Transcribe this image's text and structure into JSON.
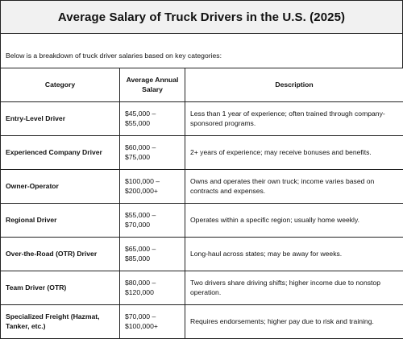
{
  "title": "Average Salary of Truck Drivers in the U.S. (2025)",
  "intro": "Below is a breakdown of truck driver salaries based on key categories:",
  "table": {
    "headers": {
      "category": "Category",
      "salary": "Average Annual Salary",
      "description": "Description"
    },
    "rows": [
      {
        "category": "Entry-Level Driver",
        "salary_line1": "$45,000 –",
        "salary_line2": "$55,000",
        "description": "Less than 1 year of experience; often trained through company-sponsored programs."
      },
      {
        "category": "Experienced Company Driver",
        "salary_line1": "$60,000 –",
        "salary_line2": "$75,000",
        "description": "2+ years of experience; may receive bonuses and benefits."
      },
      {
        "category": "Owner-Operator",
        "salary_line1": "$100,000 –",
        "salary_line2": "$200,000+",
        "description": "Owns and operates their own truck; income varies based on contracts and expenses."
      },
      {
        "category": "Regional Driver",
        "salary_line1": "$55,000 –",
        "salary_line2": "$70,000",
        "description": "Operates within a specific region; usually home weekly."
      },
      {
        "category": "Over-the-Road (OTR) Driver",
        "salary_line1": "$65,000 –",
        "salary_line2": "$85,000",
        "description": "Long-haul across states; may be away for weeks."
      },
      {
        "category": "Team Driver (OTR)",
        "salary_line1": "$80,000 –",
        "salary_line2": "$120,000",
        "description": "Two drivers share driving shifts; higher income due to nonstop operation."
      },
      {
        "category": "Specialized Freight (Hazmat, Tanker, etc.)",
        "salary_line1": "$70,000 –",
        "salary_line2": "$100,000+",
        "description": "Requires endorsements; higher pay due to risk and training."
      }
    ]
  }
}
